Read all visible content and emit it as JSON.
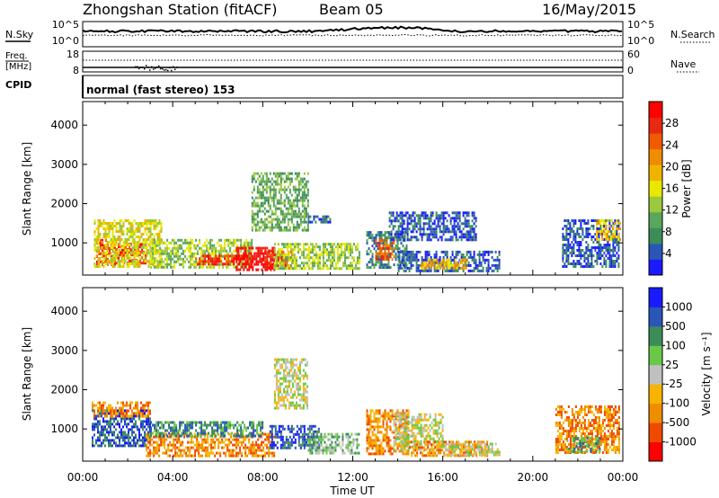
{
  "header": {
    "title": "Zhongshan Station (fitACF)",
    "beam": "Beam 05",
    "date": "16/May/2015"
  },
  "nsky_panel": {
    "left_label": "N.Sky",
    "right_label": "N.Search",
    "left_ticks": [
      "10^5",
      "10^0"
    ],
    "right_ticks": [
      "10^5",
      "10^0"
    ]
  },
  "freq_panel": {
    "left_label_1": "Freq.",
    "left_label_2": "[MHz]",
    "right_label": "Nave",
    "left_ticks": [
      "18",
      "8"
    ],
    "right_ticks": [
      "60",
      "0"
    ]
  },
  "cpid": {
    "label": "CPID",
    "value": "normal (fast stereo) 153"
  },
  "x_axis": {
    "label": "Time UT",
    "ticks": [
      "00:00",
      "04:00",
      "08:00",
      "12:00",
      "16:00",
      "20:00",
      "00:00"
    ]
  },
  "chart_data": [
    {
      "type": "heatmap",
      "name": "Power",
      "ylabel": "Slant Range [km]",
      "yticks": [
        1000,
        2000,
        3000,
        4000
      ],
      "ylim": [
        180,
        4600
      ],
      "xlim_hours": [
        0,
        24
      ],
      "colorbar": {
        "label": "Power [dB]",
        "ticks": [
          "28",
          "24",
          "20",
          "16",
          "12",
          "8",
          "4"
        ],
        "colors": [
          "#1a1aff",
          "#2a56b8",
          "#3c8c5a",
          "#5aa65c",
          "#9cc83c",
          "#e8e800",
          "#f0b400",
          "#f08c00",
          "#f05a00",
          "#e82810",
          "#ff0000"
        ]
      },
      "regions": [
        {
          "t": [
            0.6,
            1.4
          ],
          "r": [
            450,
            1100
          ],
          "level": 9
        },
        {
          "t": [
            1.4,
            2.8
          ],
          "r": [
            500,
            1000
          ],
          "level": 9
        },
        {
          "t": [
            0.5,
            3.5
          ],
          "r": [
            400,
            1600
          ],
          "level": 5
        },
        {
          "t": [
            3.0,
            7.5
          ],
          "r": [
            400,
            1100
          ],
          "level": 4
        },
        {
          "t": [
            5.0,
            7.5
          ],
          "r": [
            450,
            700
          ],
          "level": 9
        },
        {
          "t": [
            6.8,
            8.5
          ],
          "r": [
            350,
            900
          ],
          "level": 10
        },
        {
          "t": [
            8.0,
            9.3
          ],
          "r": [
            350,
            800
          ],
          "level": 9
        },
        {
          "t": [
            7.5,
            10.0
          ],
          "r": [
            1300,
            2800
          ],
          "level": 3
        },
        {
          "t": [
            8.5,
            12.3
          ],
          "r": [
            350,
            1000
          ],
          "level": 4
        },
        {
          "t": [
            10.0,
            11.0
          ],
          "r": [
            1500,
            1700
          ],
          "level": 1
        },
        {
          "t": [
            12.6,
            14.4
          ],
          "r": [
            350,
            1300
          ],
          "level": 2
        },
        {
          "t": [
            13.0,
            13.8
          ],
          "r": [
            600,
            1100
          ],
          "level": 8
        },
        {
          "t": [
            13.6,
            17.5
          ],
          "r": [
            1100,
            1800
          ],
          "level": 1
        },
        {
          "t": [
            14.0,
            18.5
          ],
          "r": [
            300,
            800
          ],
          "level": 1
        },
        {
          "t": [
            15.0,
            17.0
          ],
          "r": [
            350,
            600
          ],
          "level": 6
        },
        {
          "t": [
            21.3,
            23.8
          ],
          "r": [
            400,
            1600
          ],
          "level": 1
        },
        {
          "t": [
            22.8,
            23.9
          ],
          "r": [
            1100,
            1600
          ],
          "level": 6
        }
      ]
    },
    {
      "type": "heatmap",
      "name": "Velocity",
      "ylabel": "Slant Range [km]",
      "yticks": [
        1000,
        2000,
        3000,
        4000
      ],
      "ylim": [
        180,
        4600
      ],
      "xlim_hours": [
        0,
        24
      ],
      "colorbar": {
        "label": "Velocity [m s⁻¹]",
        "ticks": [
          "1000",
          "500",
          "100",
          "25",
          "-25",
          "-100",
          "-500",
          "-1000"
        ],
        "colors": [
          "#ff0000",
          "#f04a00",
          "#f08c00",
          "#f8b400",
          "#c0c0c0",
          "#6ac848",
          "#3c8c5a",
          "#2a56b8",
          "#1a1aff"
        ]
      },
      "regions": [
        {
          "t": [
            0.4,
            3.0
          ],
          "r": [
            600,
            1500
          ],
          "level": 7
        },
        {
          "t": [
            0.4,
            3.0
          ],
          "r": [
            1300,
            1700
          ],
          "level": 2
        },
        {
          "t": [
            2.8,
            8.5
          ],
          "r": [
            350,
            900
          ],
          "level": 2
        },
        {
          "t": [
            3.0,
            8.0
          ],
          "r": [
            800,
            1200
          ],
          "level": 6
        },
        {
          "t": [
            8.3,
            10.5
          ],
          "r": [
            500,
            1100
          ],
          "level": 7
        },
        {
          "t": [
            8.5,
            10.0
          ],
          "r": [
            1500,
            2800
          ],
          "level": 4
        },
        {
          "t": [
            10.0,
            12.3
          ],
          "r": [
            400,
            900
          ],
          "level": 5
        },
        {
          "t": [
            12.6,
            14.5
          ],
          "r": [
            400,
            1500
          ],
          "level": 2
        },
        {
          "t": [
            13.8,
            16.0
          ],
          "r": [
            500,
            1400
          ],
          "level": 4
        },
        {
          "t": [
            14.5,
            18.0
          ],
          "r": [
            300,
            700
          ],
          "level": 2
        },
        {
          "t": [
            16.0,
            18.5
          ],
          "r": [
            350,
            650
          ],
          "level": 4
        },
        {
          "t": [
            21.0,
            23.8
          ],
          "r": [
            400,
            1600
          ],
          "level": 2
        },
        {
          "t": [
            21.5,
            23.0
          ],
          "r": [
            450,
            800
          ],
          "level": 6
        }
      ]
    }
  ]
}
